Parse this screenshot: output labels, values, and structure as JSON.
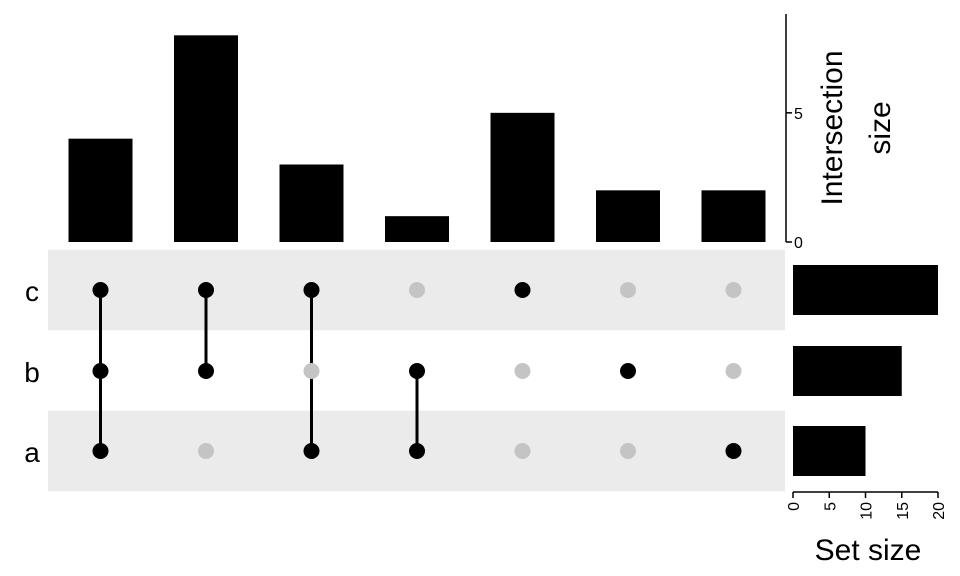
{
  "chart_data": {
    "type": "upset",
    "sets": [
      "c",
      "b",
      "a"
    ],
    "intersections": [
      {
        "members": [
          "a",
          "b",
          "c"
        ],
        "size": 4
      },
      {
        "members": [
          "b",
          "c"
        ],
        "size": 8
      },
      {
        "members": [
          "a",
          "c"
        ],
        "size": 3
      },
      {
        "members": [
          "a",
          "b"
        ],
        "size": 1
      },
      {
        "members": [
          "c"
        ],
        "size": 5
      },
      {
        "members": [
          "b"
        ],
        "size": 2
      },
      {
        "members": [
          "a"
        ],
        "size": 2
      }
    ],
    "intersection_axis": {
      "label_line1": "Intersection",
      "label_line2": "size",
      "ticks": [
        0,
        5
      ],
      "range": [
        0,
        8.4
      ]
    },
    "set_sizes": [
      {
        "set": "c",
        "size": 20
      },
      {
        "set": "b",
        "size": 15
      },
      {
        "set": "a",
        "size": 10
      }
    ],
    "set_size_axis": {
      "label": "Set size",
      "ticks": [
        0,
        5,
        10,
        15,
        20
      ],
      "range": [
        0,
        20
      ]
    },
    "colors": {
      "bar": "#000000",
      "active_dot": "#000000",
      "inactive_dot": "#c4c4c4",
      "stripe": "#ebebeb"
    }
  }
}
